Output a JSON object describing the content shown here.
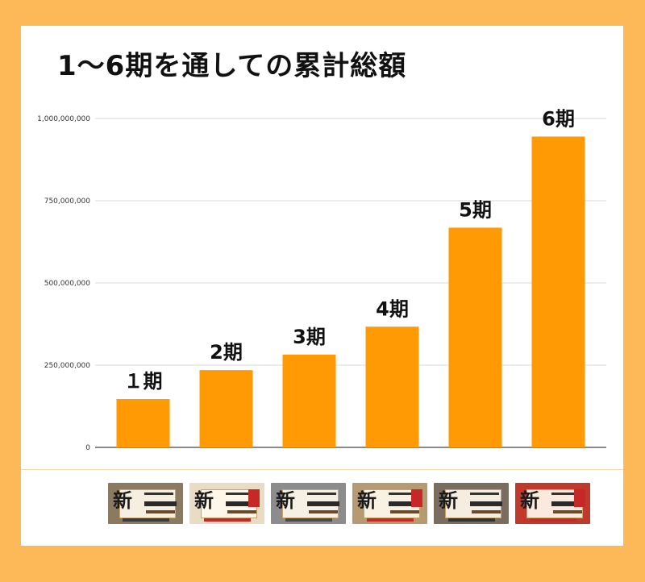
{
  "title": "1〜6期を通しての累計総額",
  "chart_data": {
    "type": "bar",
    "title": "1〜6期を通しての累計総額",
    "categories": [
      "１期",
      "2期",
      "3期",
      "4期",
      "5期",
      "6期"
    ],
    "values": [
      147000000,
      235000000,
      282000000,
      367000000,
      668000000,
      945000000
    ],
    "ylim": [
      0,
      1000000000
    ],
    "yticks": [
      0,
      250000000,
      500000000,
      750000000,
      1000000000
    ],
    "ytick_labels": [
      "0",
      "250,000,000",
      "500,000,000",
      "750,000,000",
      "1,000,000,000"
    ],
    "grid": true,
    "legend": "none",
    "bar_color": "#FF9A05"
  },
  "thumbnails": [
    {
      "name": "1期",
      "bg": "#8a7a62",
      "accent": "#3a3a3a"
    },
    {
      "name": "2期",
      "bg": "#e9dcc4",
      "accent": "#c62828"
    },
    {
      "name": "3期",
      "bg": "#8c8c8c",
      "accent": "#4a4a4a"
    },
    {
      "name": "4期",
      "bg": "#b69a72",
      "accent": "#c62828"
    },
    {
      "name": "5期",
      "bg": "#7a6c5e",
      "accent": "#333333"
    },
    {
      "name": "6期",
      "bg": "#c0392b",
      "accent": "#c62828"
    }
  ]
}
